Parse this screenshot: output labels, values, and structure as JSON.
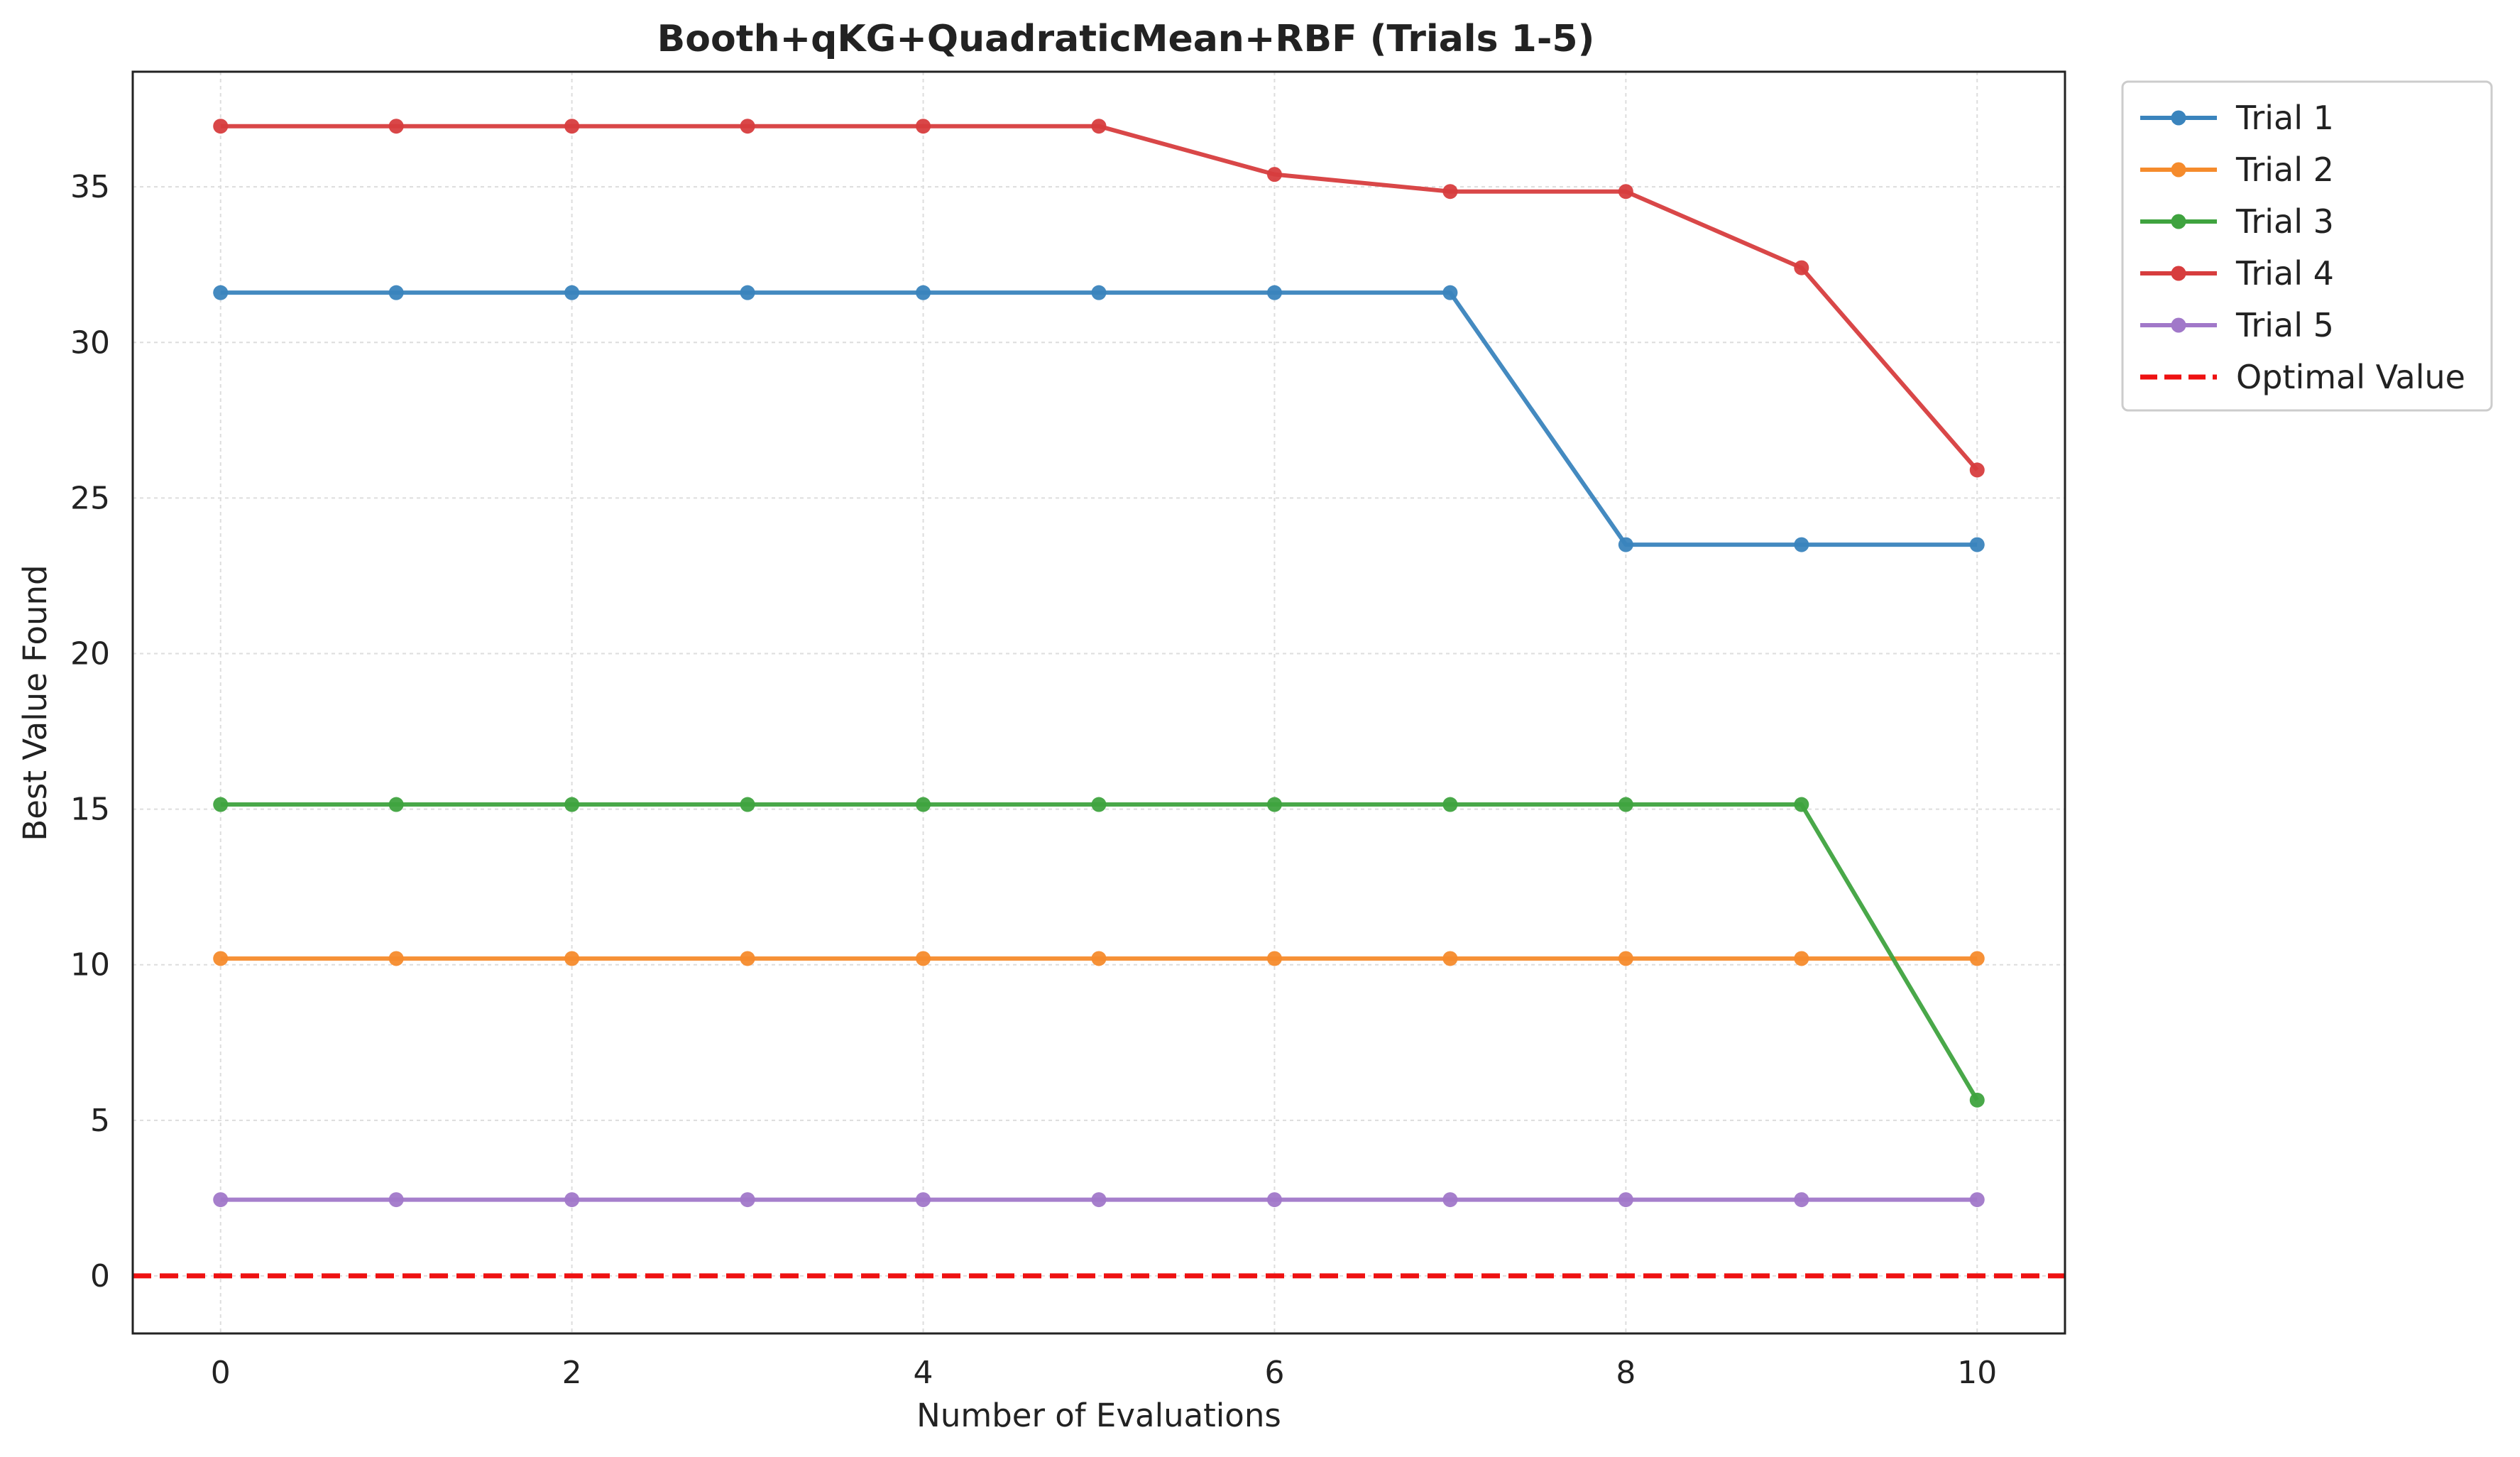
{
  "chart_data": {
    "type": "line",
    "title": "Booth+qKG+QuadraticMean+RBF (Trials 1-5)",
    "xlabel": "Number of Evaluations",
    "ylabel": "Best Value Found",
    "xlim": [
      -0.5,
      10.5
    ],
    "ylim": [
      -1.85,
      38.7
    ],
    "xticks": [
      0,
      2,
      4,
      6,
      8,
      10
    ],
    "yticks": [
      0,
      5,
      10,
      15,
      20,
      25,
      30,
      35
    ],
    "grid": true,
    "legend_position": "outside-top-right",
    "x": [
      0,
      1,
      2,
      3,
      4,
      5,
      6,
      7,
      8,
      9,
      10
    ],
    "series": [
      {
        "name": "Trial 1",
        "color": "#3a84bd",
        "values": [
          31.6,
          31.6,
          31.6,
          31.6,
          31.6,
          31.6,
          31.6,
          31.6,
          23.5,
          23.5,
          23.5
        ]
      },
      {
        "name": "Trial 2",
        "color": "#f58b2c",
        "values": [
          10.2,
          10.2,
          10.2,
          10.2,
          10.2,
          10.2,
          10.2,
          10.2,
          10.2,
          10.2,
          10.2
        ]
      },
      {
        "name": "Trial 3",
        "color": "#3fa33f",
        "values": [
          15.15,
          15.15,
          15.15,
          15.15,
          15.15,
          15.15,
          15.15,
          15.15,
          15.15,
          15.15,
          5.65
        ]
      },
      {
        "name": "Trial 4",
        "color": "#d73d3e",
        "values": [
          36.95,
          36.95,
          36.95,
          36.95,
          36.95,
          36.95,
          35.4,
          34.85,
          34.85,
          32.4,
          25.9
        ]
      },
      {
        "name": "Trial 5",
        "color": "#a178c9",
        "values": [
          2.45,
          2.45,
          2.45,
          2.45,
          2.45,
          2.45,
          2.45,
          2.45,
          2.45,
          2.45,
          2.45
        ]
      }
    ],
    "reference_line": {
      "name": "Optimal Value",
      "value": 0,
      "color": "#ee1111",
      "style": "dashed"
    }
  }
}
